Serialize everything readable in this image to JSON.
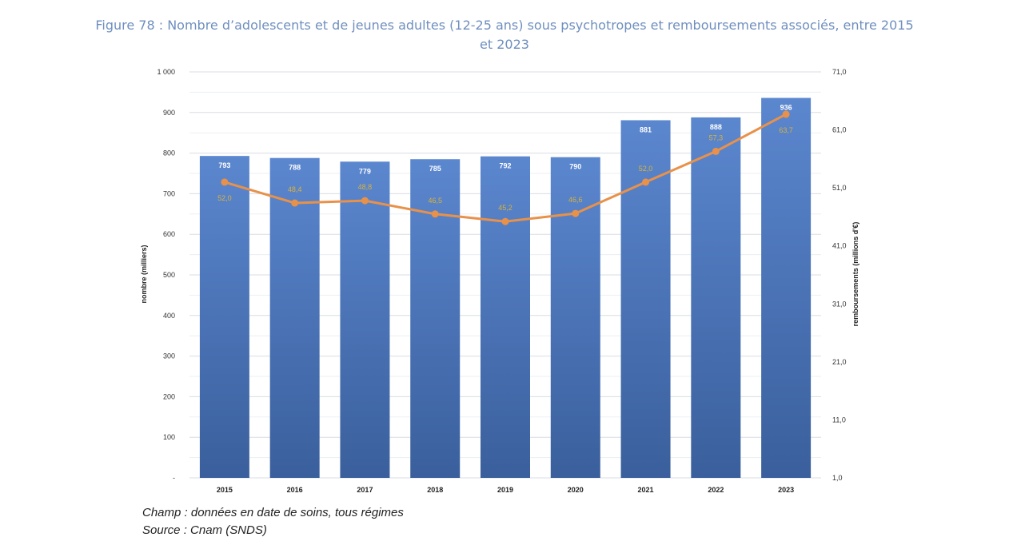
{
  "figure": {
    "title_line1": "Figure 78 : Nombre d’adolescents et de jeunes adultes (12-25 ans) sous psychotropes et remboursements associés, entre 2015",
    "title_line2": "et 2023"
  },
  "notes": {
    "champ": "Champ : données en date de soins, tous régimes",
    "source": "Source : Cnam (SNDS)"
  },
  "colors": {
    "bar_top": "#5b87cf",
    "bar_bottom": "#3a5f9c",
    "line": "#e8914a",
    "line_label": "#d9b13b",
    "grid": "#d9dde3"
  },
  "chart_data": {
    "type": "bar",
    "categories": [
      "2015",
      "2016",
      "2017",
      "2018",
      "2019",
      "2020",
      "2021",
      "2022",
      "2023"
    ],
    "series": [
      {
        "type": "bar",
        "axis": "left",
        "values": [
          793,
          788,
          779,
          785,
          792,
          790,
          881,
          888,
          936
        ],
        "labels": [
          "793",
          "788",
          "779",
          "785",
          "792",
          "790",
          "881",
          "888",
          "936"
        ]
      },
      {
        "type": "line",
        "axis": "right",
        "values": [
          52.0,
          48.4,
          48.8,
          46.5,
          45.2,
          46.6,
          52.0,
          57.3,
          63.7
        ],
        "labels": [
          "52,0",
          "48,4",
          "48,8",
          "46,5",
          "45,2",
          "46,6",
          "52,0",
          "57,3",
          "63,7"
        ]
      }
    ],
    "ylabel": "nombre (milliers)",
    "y2label": "remboursements (millions d'€)",
    "ylim": [
      0,
      1000
    ],
    "y2lim": [
      1.0,
      71.0
    ],
    "yticks": [
      "-",
      "100",
      "200",
      "300",
      "400",
      "500",
      "600",
      "700",
      "800",
      "900",
      "1 000"
    ],
    "y2ticks": [
      "1,0",
      "11,0",
      "21,0",
      "31,0",
      "41,0",
      "51,0",
      "61,0",
      "71,0"
    ],
    "grid": true,
    "legend": "none"
  }
}
